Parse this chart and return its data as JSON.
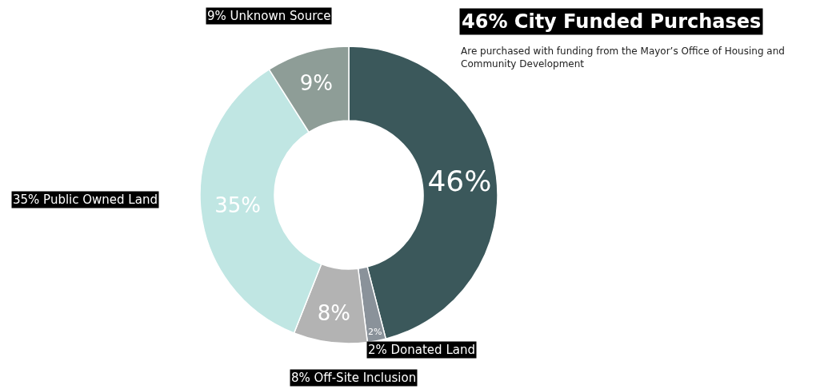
{
  "chart_data": {
    "type": "donut",
    "title": "46% City Funded Purchases",
    "subtitle": "Are purchased with funding from the Mayor’s Office of Housing and Community Development",
    "categories": [
      null,
      "2% Donated Land",
      "8% Off-Site Inclusion",
      "35% Public Owned Land",
      "9% Unknown Source"
    ],
    "values": [
      46,
      2,
      8,
      35,
      9
    ],
    "value_labels": [
      "46%",
      "2%",
      "8%",
      "35%",
      "9%"
    ],
    "colors": [
      "#3b585b",
      "#8a929a",
      "#b3b3b3",
      "#c0e6e3",
      "#8e9d97"
    ],
    "legend": false
  }
}
